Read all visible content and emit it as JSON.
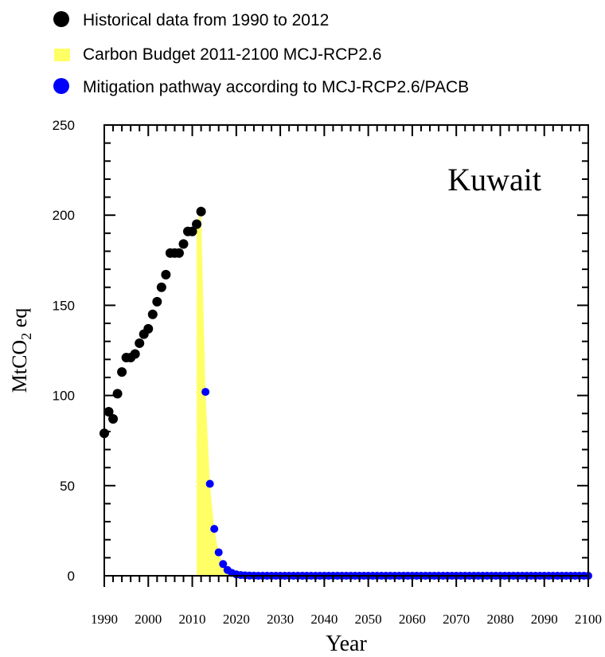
{
  "chart_data": {
    "type": "scatter",
    "title": "Kuwait",
    "xlabel": "Year",
    "ylabel_main": "MtCO",
    "ylabel_sub": "2",
    "ylabel_tail": " eq",
    "xlim": [
      1990,
      2100
    ],
    "ylim": [
      0,
      250
    ],
    "x_ticks": [
      1990,
      2000,
      2010,
      2020,
      2030,
      2040,
      2050,
      2060,
      2070,
      2080,
      2090,
      2100
    ],
    "y_ticks": [
      0,
      50,
      100,
      150,
      200,
      250
    ],
    "grid": false,
    "legend_position": "top",
    "series": [
      {
        "name": "Historical data from 1990 to 2012",
        "kind": "scatter",
        "color": "#000000",
        "x": [
          1990,
          1991,
          1992,
          1993,
          1994,
          1995,
          1996,
          1997,
          1998,
          1999,
          2000,
          2001,
          2002,
          2003,
          2004,
          2005,
          2006,
          2007,
          2008,
          2009,
          2010,
          2011,
          2012
        ],
        "y": [
          79,
          91,
          87,
          101,
          113,
          121,
          121,
          123,
          129,
          134,
          137,
          145,
          152,
          160,
          167,
          179,
          179,
          179,
          184,
          191,
          191,
          195,
          202
        ]
      },
      {
        "name": "Carbon Budget 2011-2100 MCJ-RCP2.6",
        "kind": "area",
        "color": "#ffff66",
        "x": [
          2011,
          2012,
          2013,
          2014,
          2015,
          2016,
          2017,
          2018,
          2019,
          2020,
          2021,
          2022,
          2023,
          2024,
          2025,
          2100
        ],
        "y": [
          195,
          202,
          102,
          51,
          26,
          13,
          6.5,
          3.2,
          1.6,
          0.8,
          0.4,
          0.2,
          0.1,
          0.05,
          0,
          0
        ]
      },
      {
        "name": "Mitigation pathway according to MCJ-RCP2.6/PACB",
        "kind": "scatter",
        "color": "#0000ff",
        "x": [
          2013,
          2014,
          2015,
          2016,
          2017,
          2018,
          2019,
          2020,
          2021,
          2022,
          2023,
          2024,
          2025,
          2026,
          2027,
          2028,
          2029,
          2030,
          2031,
          2032,
          2033,
          2034,
          2035,
          2036,
          2037,
          2038,
          2039,
          2040,
          2041,
          2042,
          2043,
          2044,
          2045,
          2046,
          2047,
          2048,
          2049,
          2050,
          2051,
          2052,
          2053,
          2054,
          2055,
          2056,
          2057,
          2058,
          2059,
          2060,
          2061,
          2062,
          2063,
          2064,
          2065,
          2066,
          2067,
          2068,
          2069,
          2070,
          2071,
          2072,
          2073,
          2074,
          2075,
          2076,
          2077,
          2078,
          2079,
          2080,
          2081,
          2082,
          2083,
          2084,
          2085,
          2086,
          2087,
          2088,
          2089,
          2090,
          2091,
          2092,
          2093,
          2094,
          2095,
          2096,
          2097,
          2098,
          2099,
          2100
        ],
        "y": [
          102,
          51,
          26,
          13,
          6.5,
          3.2,
          1.6,
          0.8,
          0.4,
          0.2,
          0.1,
          0.05,
          0,
          0,
          0,
          0,
          0,
          0,
          0,
          0,
          0,
          0,
          0,
          0,
          0,
          0,
          0,
          0,
          0,
          0,
          0,
          0,
          0,
          0,
          0,
          0,
          0,
          0,
          0,
          0,
          0,
          0,
          0,
          0,
          0,
          0,
          0,
          0,
          0,
          0,
          0,
          0,
          0,
          0,
          0,
          0,
          0,
          0,
          0,
          0,
          0,
          0,
          0,
          0,
          0,
          0,
          0,
          0,
          0,
          0,
          0,
          0,
          0,
          0,
          0,
          0,
          0,
          0,
          0,
          0,
          0,
          0,
          0,
          0,
          0,
          0,
          0,
          0
        ]
      }
    ]
  }
}
